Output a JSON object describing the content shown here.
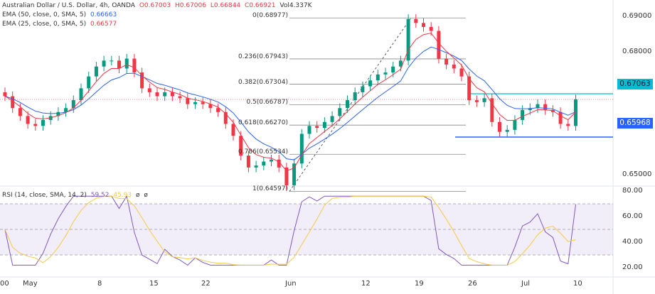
{
  "header": {
    "title": "Australian Dollar / U.S. Dollar, 4h, OANDA",
    "o": "O0.67003",
    "h": "H0.67006",
    "l": "L0.66844",
    "c": "C0.66921",
    "vol": "Vol4.337K"
  },
  "ema50": {
    "label": "EMA (50, close, 0, SMA, 5)",
    "value": "0.66663",
    "color": "#2962ff"
  },
  "ema25": {
    "label": "EMA (25, close, 0, SMA, 5)",
    "value": "0.66577",
    "color": "#f23645"
  },
  "rsi": {
    "label": "RSI (14, close, SMA, 14, 2)",
    "value": "59.52",
    "ma_value": "45.93",
    "extra1": "ø",
    "extra2": "ø",
    "color": "#7e57c2",
    "ma_color": "#f7c948"
  },
  "chart_data": {
    "type": "candlestick",
    "price_ticks": [
      "0.69000",
      "0.68000",
      "0.65000"
    ],
    "price_tick_values": [
      0.69,
      0.68,
      0.65
    ],
    "ylim": [
      0.6435,
      0.6925
    ],
    "rsi_ticks": [
      "80.00",
      "60.00",
      "40.00",
      "20.00"
    ],
    "rsi_band": [
      30,
      70
    ],
    "x_labels": [
      "00",
      "May",
      "8",
      "15",
      "22",
      "Jun",
      "12",
      "19",
      "26",
      "Jul",
      "10"
    ],
    "closes": [
      0.67,
      0.667,
      0.665,
      0.663,
      0.6625,
      0.664,
      0.665,
      0.666,
      0.667,
      0.669,
      0.672,
      0.675,
      0.6775,
      0.679,
      0.679,
      0.677,
      0.6795,
      0.676,
      0.672,
      0.671,
      0.67,
      0.671,
      0.67,
      0.6695,
      0.668,
      0.6685,
      0.668,
      0.667,
      0.666,
      0.663,
      0.66,
      0.655,
      0.652,
      0.6525,
      0.6535,
      0.654,
      0.652,
      0.6475,
      0.653,
      0.6605,
      0.6625,
      0.662,
      0.6635,
      0.665,
      0.667,
      0.669,
      0.671,
      0.6725,
      0.674,
      0.6755,
      0.676,
      0.6775,
      0.679,
      0.6895,
      0.6885,
      0.6875,
      0.6865,
      0.6795,
      0.678,
      0.677,
      0.675,
      0.669,
      0.6685,
      0.6695,
      0.6635,
      0.661,
      0.6615,
      0.664,
      0.6665,
      0.667,
      0.668,
      0.6665,
      0.666,
      0.663,
      0.6625,
      0.6692
    ],
    "fib_levels": [
      {
        "label": "0(0.68977)",
        "value": 0.68977
      },
      {
        "label": "0.236(0.67943)",
        "value": 0.67943
      },
      {
        "label": "0.382(0.67304)",
        "value": 0.67304
      },
      {
        "label": "0.5(0.66787)",
        "value": 0.66787
      },
      {
        "label": "0.618(0.66270)",
        "value": 0.6627
      },
      {
        "label": "0.786(0.65534)",
        "value": 0.65534
      },
      {
        "label": "1(0.64597)",
        "value": 0.64597
      }
    ],
    "resistance": {
      "label": "0.67063",
      "value": 0.67063,
      "color": "#00bcd4"
    },
    "support": {
      "label": "0.65968",
      "value": 0.65968,
      "color": "#2962ff"
    },
    "up_color": "#089981",
    "down_color": "#f23645"
  }
}
